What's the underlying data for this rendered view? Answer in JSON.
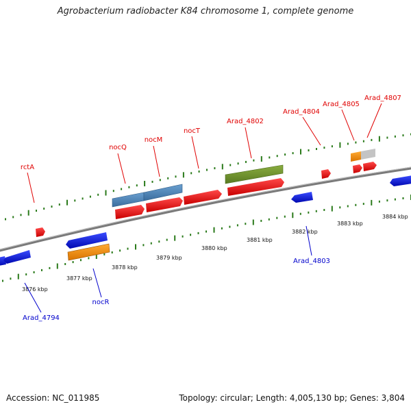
{
  "title": "Agrobacterium radiobacter K84 chromosome 1, complete genome",
  "footer": {
    "accession": "Accession: NC_011985",
    "info": "Topology: circular; Length: 4,005,130 bp; Genes: 3,804"
  },
  "colors": {
    "forward_cds": "#e00000",
    "reverse_cds": "#0010d8",
    "forward_label": "#e00000",
    "reverse_label": "#0000cc",
    "tick": "#2a7a1a",
    "backbone": "#808080"
  },
  "ruler_labels": [
    "3876 kbp",
    "3877 kbp",
    "3878 kbp",
    "3879 kbp",
    "3880 kbp",
    "3881 kbp",
    "3882 kbp",
    "3883 kbp",
    "3884 kbp"
  ],
  "forward_labels": [
    "rctA",
    "nocQ",
    "nocM",
    "nocT",
    "Arad_4802",
    "Arad_4804",
    "Arad_4805",
    "Arad_4807"
  ],
  "reverse_labels": [
    "Arad_4794",
    "nocR",
    "Arad_4803"
  ]
}
